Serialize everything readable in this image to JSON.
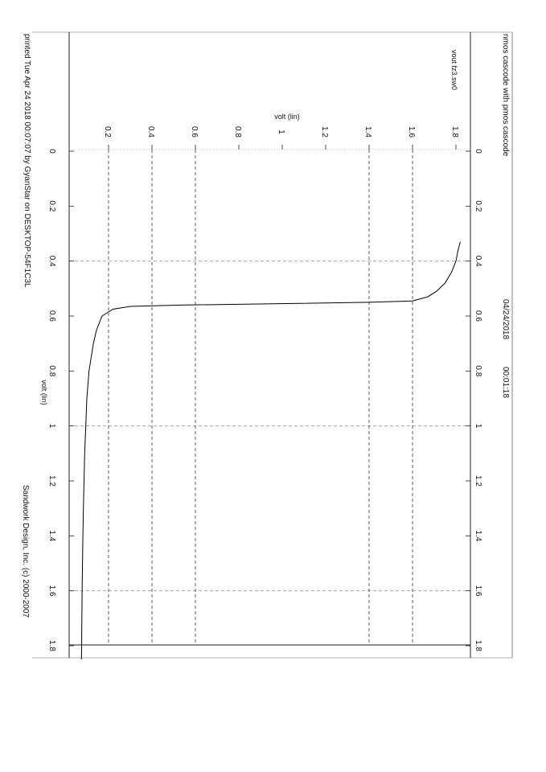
{
  "header": {
    "title": "nmos cascode with pmos cascode",
    "date": "04/24/2018",
    "time": "00:01:18",
    "copyright": "Sandwork Design, Inc. (c) 2000-2007",
    "printed": "printed Tue Apr 24 2018 00:07:07 by GyanStar on DESKTOP-54F1C3L"
  },
  "chart_data": {
    "type": "line",
    "series": [
      {
        "name": "vout fz3.sw0"
      }
    ],
    "xlabel": "volt (lin)",
    "ylabel": "volt (lin)",
    "xlim": [
      0,
      1.85
    ],
    "ylim": [
      0.05,
      1.82
    ],
    "x_ticks": [
      "0",
      "0.2",
      "0.4",
      "0.6",
      "0.8",
      "1",
      "1.2",
      "1.4",
      "1.6",
      "1.8"
    ],
    "x_tick_values": [
      0,
      0.2,
      0.4,
      0.6,
      0.8,
      1,
      1.2,
      1.4,
      1.6,
      1.8
    ],
    "y_ticks": [
      "0.2",
      "0.4",
      "0.6",
      "0.8",
      "1",
      "1.2",
      "1.4",
      "1.6",
      "1.8"
    ],
    "y_tick_values": [
      0.2,
      0.4,
      0.6,
      0.8,
      1.0,
      1.2,
      1.4,
      1.6,
      1.8
    ],
    "x_gridlines": [
      0.4,
      1.0,
      1.6
    ],
    "y_gridlines": [
      0.2,
      0.4,
      0.6,
      1.4,
      1.6
    ],
    "grid": "dashed",
    "orientation": "page rotated 90 degrees clockwise",
    "x": [
      0.33,
      0.36,
      0.4,
      0.44,
      0.48,
      0.51,
      0.53,
      0.545,
      0.55,
      0.555,
      0.56,
      0.565,
      0.575,
      0.6,
      0.65,
      0.7,
      0.8,
      0.9,
      1.0,
      1.1,
      1.2,
      1.3,
      1.4,
      1.5,
      1.6,
      1.7,
      1.8,
      1.85
    ],
    "y": [
      1.82,
      1.81,
      1.8,
      1.78,
      1.75,
      1.71,
      1.67,
      1.6,
      1.4,
      0.99,
      0.55,
      0.3,
      0.22,
      0.17,
      0.145,
      0.13,
      0.11,
      0.1,
      0.095,
      0.09,
      0.087,
      0.084,
      0.082,
      0.08,
      0.078,
      0.077,
      0.076,
      0.075
    ]
  }
}
